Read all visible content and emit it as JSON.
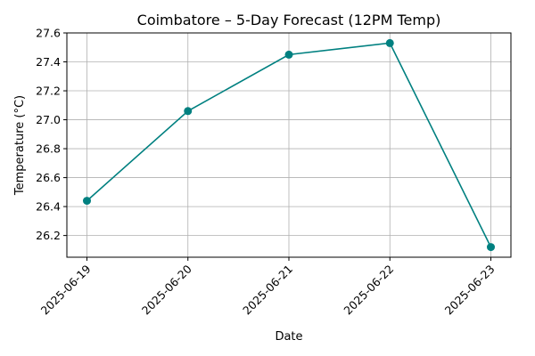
{
  "chart_data": {
    "type": "line",
    "title": "Coimbatore – 5-Day Forecast (12PM Temp)",
    "xlabel": "Date",
    "ylabel": "Temperature (°C)",
    "x": [
      "2025-06-19",
      "2025-06-20",
      "2025-06-21",
      "2025-06-22",
      "2025-06-23"
    ],
    "series": [
      {
        "values": [
          26.44,
          27.06,
          27.45,
          27.53,
          26.12
        ],
        "color": "#008080",
        "marker": "circle"
      }
    ],
    "ylim": [
      26.05,
      27.6
    ],
    "yticks": [
      26.2,
      26.4,
      26.6,
      26.8,
      27.0,
      27.2,
      27.4,
      27.6
    ],
    "ytick_labels": [
      "26.2",
      "26.4",
      "26.6",
      "26.8",
      "27.0",
      "27.2",
      "27.4",
      "27.6"
    ],
    "grid": true,
    "legend": false
  }
}
